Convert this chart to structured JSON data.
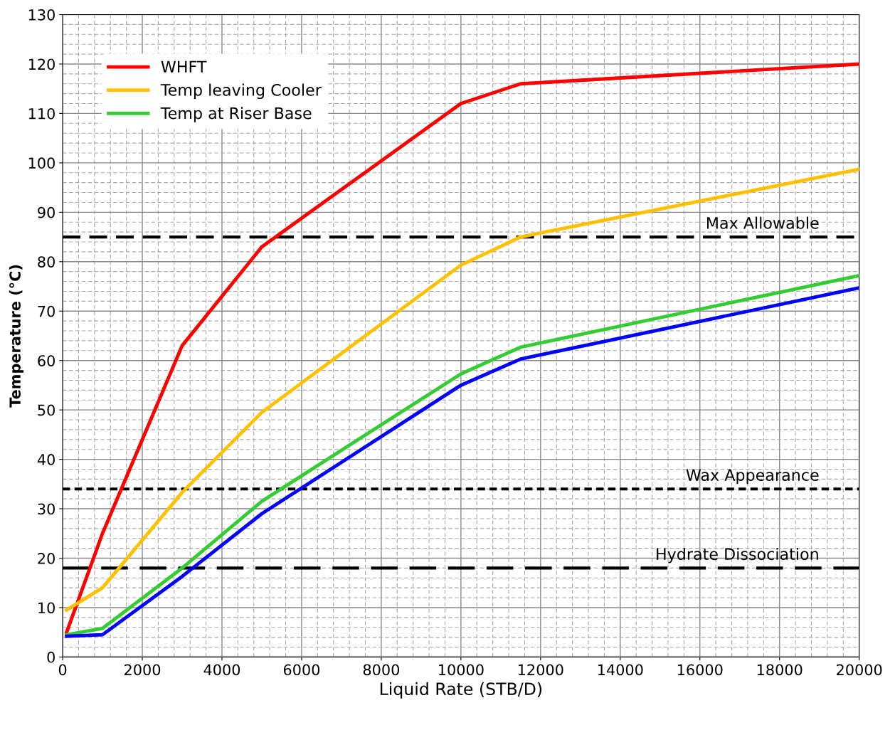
{
  "chart_data": {
    "type": "line",
    "xlabel": "Liquid Rate (STB/D)",
    "ylabel": "Temperature (°C)",
    "x": [
      100,
      1000,
      3000,
      5000,
      10000,
      11500,
      20000
    ],
    "series": [
      {
        "name": "WHFT",
        "color": "#ff0000",
        "values": [
          5,
          25,
          63,
          83,
          112,
          116,
          120
        ]
      },
      {
        "name": "Temp leaving Cooler",
        "color": "#ffc000",
        "values": [
          9.5,
          14,
          33.3,
          49.5,
          79.3,
          85,
          98.7
        ]
      },
      {
        "name": "Temp at Riser Base",
        "color": "#33cc33",
        "values": [
          4.5,
          5.8,
          18,
          31.5,
          57.3,
          62.7,
          77.2
        ]
      },
      {
        "color": "#0000ff",
        "values": [
          4.2,
          4.5,
          16.3,
          29,
          55,
          60.3,
          74.7
        ]
      }
    ],
    "ref_lines": [
      {
        "axis": "y",
        "value": 85,
        "label": "Max Allowable",
        "color": "#000000",
        "line_style": "dashed"
      },
      {
        "axis": "y",
        "value": 34,
        "label": "Wax Appearance",
        "color": "#000000",
        "line_style": "dotted"
      },
      {
        "axis": "y",
        "value": 18,
        "label": "Hydrate Dissociation",
        "color": "#000000",
        "line_style": "dashed"
      }
    ],
    "xlim": [
      0,
      20000
    ],
    "xticks": [
      0,
      2000,
      4000,
      6000,
      8000,
      10000,
      12000,
      14000,
      16000,
      18000,
      20000
    ],
    "ylim": [
      0,
      130
    ],
    "yticks": [
      0,
      10,
      20,
      30,
      40,
      50,
      60,
      70,
      80,
      90,
      100,
      110,
      120,
      130
    ],
    "grid": true,
    "legend": "top left",
    "marker": "none",
    "line_style": "solid"
  }
}
